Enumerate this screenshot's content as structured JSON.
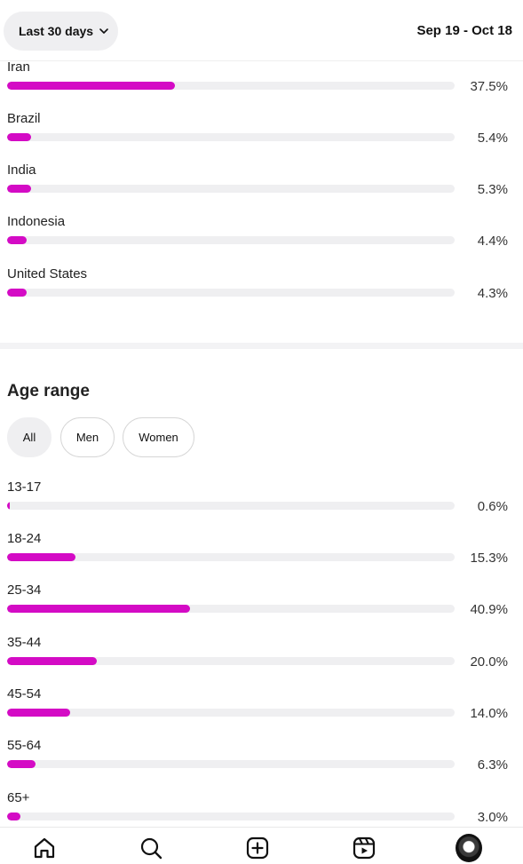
{
  "header": {
    "period_label": "Last 30 days",
    "date_range": "Sep 19 - Oct 18"
  },
  "countries": [
    {
      "label": "Iran",
      "percent": 37.5,
      "display": "37.5%"
    },
    {
      "label": "Brazil",
      "percent": 5.4,
      "display": "5.4%"
    },
    {
      "label": "India",
      "percent": 5.3,
      "display": "5.3%"
    },
    {
      "label": "Indonesia",
      "percent": 4.4,
      "display": "4.4%"
    },
    {
      "label": "United States",
      "percent": 4.3,
      "display": "4.3%"
    }
  ],
  "age_section": {
    "title": "Age range",
    "filters": [
      {
        "label": "All",
        "active": true
      },
      {
        "label": "Men",
        "active": false
      },
      {
        "label": "Women",
        "active": false
      }
    ],
    "ranges": [
      {
        "label": "13-17",
        "percent": 0.6,
        "display": "0.6%"
      },
      {
        "label": "18-24",
        "percent": 15.3,
        "display": "15.3%"
      },
      {
        "label": "25-34",
        "percent": 40.9,
        "display": "40.9%"
      },
      {
        "label": "35-44",
        "percent": 20.0,
        "display": "20.0%"
      },
      {
        "label": "45-54",
        "percent": 14.0,
        "display": "14.0%"
      },
      {
        "label": "55-64",
        "percent": 6.3,
        "display": "6.3%"
      },
      {
        "label": "65+",
        "percent": 3.0,
        "display": "3.0%"
      }
    ]
  },
  "tabbar": {
    "icons": [
      "home-icon",
      "search-icon",
      "create-icon",
      "reels-icon",
      "profile-avatar"
    ]
  },
  "colors": {
    "bar_fill": "#d40bc5",
    "bar_track": "#efeff1"
  }
}
